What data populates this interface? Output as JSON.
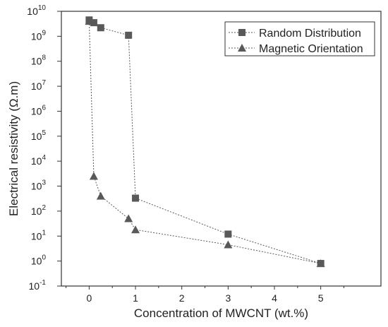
{
  "chart_data": {
    "type": "scatter",
    "title": "",
    "xlabel": "Concentration of MWCNT (wt.%)",
    "ylabel": "Electrical resistivity (Ω.m)",
    "xlim": [
      -0.6,
      6.3
    ],
    "ylim_exponent": [
      -1,
      10
    ],
    "yscale": "log",
    "x_ticks": [
      0,
      1,
      2,
      3,
      4,
      5
    ],
    "y_tick_exponents": [
      -1,
      0,
      1,
      2,
      3,
      4,
      5,
      6,
      7,
      8,
      9,
      10
    ],
    "grid": false,
    "legend_position": "top-right",
    "series": [
      {
        "name": "Random Distribution",
        "marker": "square",
        "line": "dotted",
        "color": "#595959",
        "points": [
          {
            "x": 0,
            "y": 4500000000.0
          },
          {
            "x": 0.1,
            "y": 3500000000.0
          },
          {
            "x": 0.25,
            "y": 2200000000.0
          },
          {
            "x": 0.85,
            "y": 1100000000.0
          },
          {
            "x": 1,
            "y": 330
          },
          {
            "x": 3,
            "y": 12
          },
          {
            "x": 5,
            "y": 0.8
          }
        ]
      },
      {
        "name": "Magnetic Orientation",
        "marker": "triangle",
        "line": "dotted",
        "color": "#595959",
        "points": [
          {
            "x": 0,
            "y": 4000000000.0
          },
          {
            "x": 0.1,
            "y": 2500
          },
          {
            "x": 0.25,
            "y": 400
          },
          {
            "x": 0.85,
            "y": 50
          },
          {
            "x": 1,
            "y": 18
          },
          {
            "x": 3,
            "y": 4.5
          },
          {
            "x": 5,
            "y": 0.8
          }
        ]
      }
    ]
  }
}
